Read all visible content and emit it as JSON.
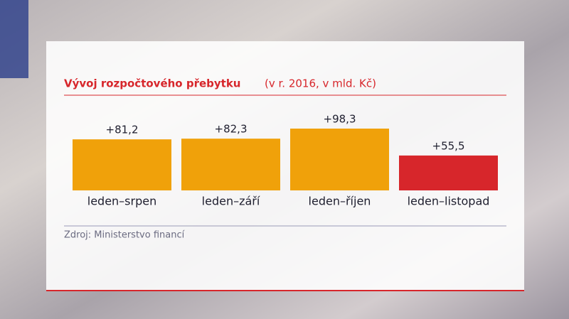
{
  "chart_data": {
    "type": "bar",
    "title": "Vývoj rozpočtového přebytku",
    "subtitle": "(v r. 2016, v mld. Kč)",
    "categories": [
      "leden–srpen",
      "leden–září",
      "leden–říjen",
      "leden–listopad"
    ],
    "values": [
      81.2,
      82.3,
      98.3,
      55.5
    ],
    "value_labels": [
      "+81,2",
      "+82,3",
      "+98,3",
      "+55,5"
    ],
    "colors": [
      "#f0a10a",
      "#f0a10a",
      "#f0a10a",
      "#d7262b"
    ],
    "source": "Zdroj: Ministerstvo financí"
  }
}
